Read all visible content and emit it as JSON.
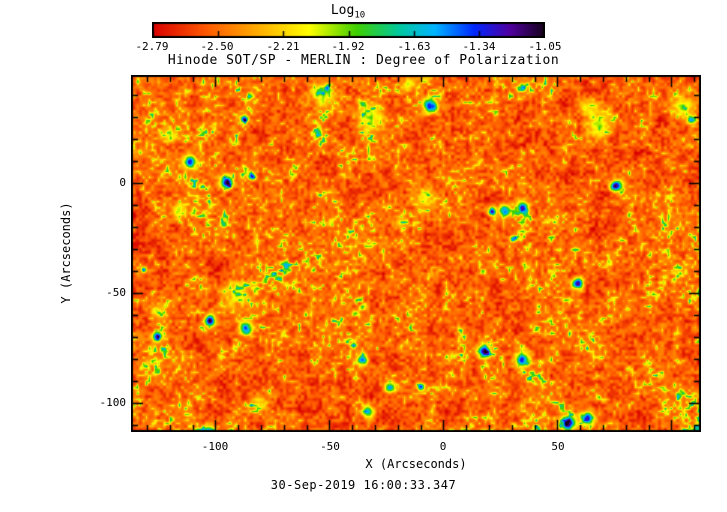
{
  "colorbar": {
    "label_main": "Log",
    "label_sub": "10",
    "tick_labels": [
      "-2.79",
      "-2.50",
      "-2.21",
      "-1.92",
      "-1.63",
      "-1.34",
      "-1.05"
    ]
  },
  "title": "Hinode SOT/SP - MERLIN : Degree of Polarization",
  "axes": {
    "x_label": "X (Arcseconds)",
    "y_label": "Y (Arcseconds)",
    "x_tick_labels": [
      "-100",
      "-50",
      "0",
      "50"
    ],
    "y_tick_labels": [
      "0",
      "-50",
      "-100"
    ]
  },
  "caption": "30-Sep-2019 16:00:33.347",
  "chart_data": {
    "type": "heatmap",
    "title": "Hinode SOT/SP - MERLIN : Degree of Polarization",
    "colorbar_label": "Log10",
    "colorbar_ticks": [
      -2.79,
      -2.5,
      -2.21,
      -1.92,
      -1.63,
      -1.34,
      -1.05
    ],
    "value_range_log10": [
      -2.79,
      -1.05
    ],
    "xlabel": "X (Arcseconds)",
    "ylabel": "Y (Arcseconds)",
    "x_ticks": [
      -100,
      -50,
      0,
      50
    ],
    "y_ticks": [
      0,
      -50,
      -100
    ],
    "x_range": [
      -137,
      113
    ],
    "y_range": [
      -113,
      49
    ],
    "minor_tick_step": 10,
    "major_tick_step": 50,
    "timestamp": "30-Sep-2019 16:00:33.347",
    "description": "Full-disk-section polarization map: granular background at log10 ~ -2.6 to -2.3 (red/orange), intergranular speckle ~ -2.1 to -1.9 (yellow/green), sparse compact magnetic patches up to ~ -1.05 (cyan/blue/dark violet cores).",
    "colormap": [
      [
        0.0,
        "#d80000"
      ],
      [
        0.14,
        "#ff5a00"
      ],
      [
        0.28,
        "#ffb400"
      ],
      [
        0.4,
        "#ffff00"
      ],
      [
        0.52,
        "#40d000"
      ],
      [
        0.63,
        "#00c8a0"
      ],
      [
        0.72,
        "#00b4ff"
      ],
      [
        0.82,
        "#0028ff"
      ],
      [
        0.91,
        "#5000a0"
      ],
      [
        1.0,
        "#140018"
      ]
    ]
  }
}
